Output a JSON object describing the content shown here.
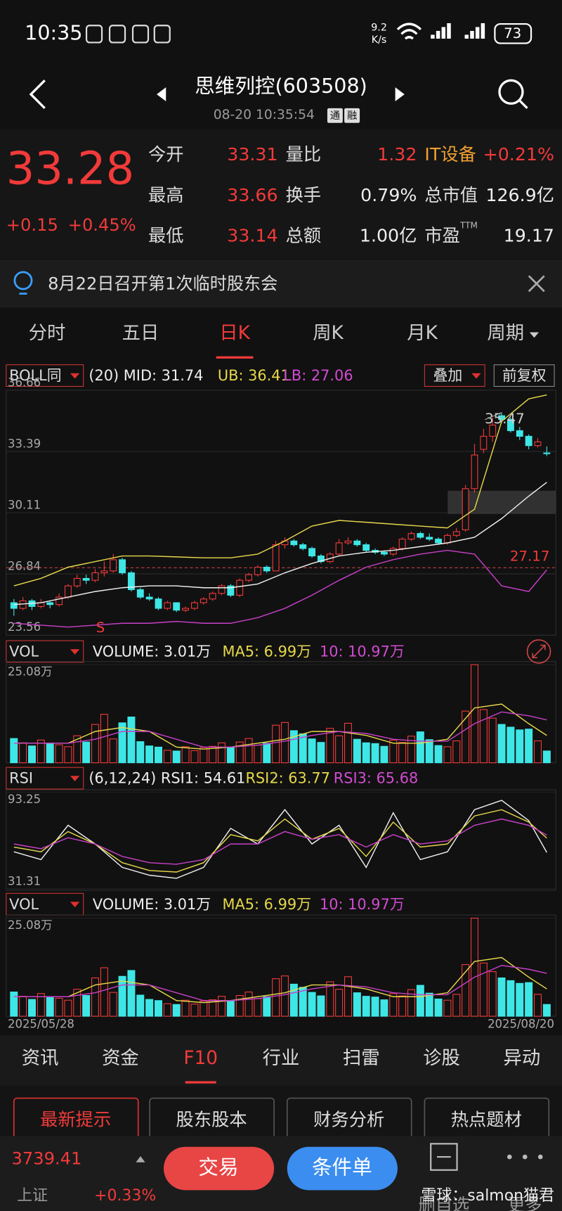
{
  "status_bar": {
    "time": "10:35",
    "speed": "9.2",
    "speed_unit": "K/s",
    "battery": "73"
  },
  "header": {
    "title": "思维列控(603508)",
    "timestamp": "08-20 10:35:54",
    "badges": [
      "通",
      "融"
    ]
  },
  "quote": {
    "price": "33.28",
    "change": "+0.15",
    "change_pct": "+0.45%",
    "items": [
      {
        "label": "今开",
        "value": "33.31",
        "color": "#f23a3a"
      },
      {
        "label": "量比",
        "value": "1.32",
        "color": "#f23a3a"
      },
      {
        "label": "IT设备",
        "value": "+0.21%",
        "color": "#f23a3a"
      },
      {
        "label": "最高",
        "value": "33.66",
        "color": "#f23a3a"
      },
      {
        "label": "换手",
        "value": "0.79%",
        "color": "#eeeeee"
      },
      {
        "label": "总市值",
        "value": "126.9亿",
        "color": "#eeeeee"
      },
      {
        "label": "最低",
        "value": "33.14",
        "color": "#f23a3a"
      },
      {
        "label": "总额",
        "value": "1.00亿",
        "color": "#eeeeee"
      },
      {
        "label": "市盈",
        "sup": "TTM",
        "value": "19.17",
        "color": "#eeeeee"
      }
    ]
  },
  "notice": "8月22日召开第1次临时股东会",
  "tabs": [
    "分时",
    "五日",
    "日K",
    "周K",
    "月K",
    "周期"
  ],
  "kline": {
    "indicator": {
      "name": "BOLL同",
      "items": [
        "(20) MID: 31.74",
        "UB: 36.41",
        "LB: 27.06"
      ]
    },
    "overlay": "叠加",
    "adjust": "前复权",
    "ylim": [
      23.56,
      36.66
    ],
    "yticks": [
      36.66,
      33.39,
      30.11,
      26.84,
      23.56
    ],
    "reference_line": 27.17,
    "signal": "S",
    "candles": [
      [
        25.3,
        25.5,
        24.6,
        25.0
      ],
      [
        25.0,
        25.6,
        24.9,
        25.4
      ],
      [
        25.4,
        25.5,
        24.9,
        25.1
      ],
      [
        25.1,
        25.5,
        25.0,
        25.3
      ],
      [
        25.3,
        25.4,
        25.0,
        25.2
      ],
      [
        25.2,
        25.8,
        25.1,
        25.6
      ],
      [
        25.6,
        26.3,
        25.5,
        26.2
      ],
      [
        26.2,
        26.8,
        26.1,
        26.6
      ],
      [
        26.6,
        26.8,
        26.3,
        26.5
      ],
      [
        26.5,
        27.1,
        26.4,
        26.9
      ],
      [
        26.9,
        27.5,
        26.7,
        27.0
      ],
      [
        27.0,
        27.9,
        26.9,
        27.6
      ],
      [
        27.6,
        27.7,
        26.8,
        26.9
      ],
      [
        26.9,
        27.0,
        25.9,
        26.0
      ],
      [
        26.0,
        26.1,
        25.5,
        25.6
      ],
      [
        25.6,
        25.8,
        25.4,
        25.5
      ],
      [
        25.5,
        25.6,
        24.9,
        25.0
      ],
      [
        25.0,
        25.4,
        24.9,
        25.3
      ],
      [
        25.3,
        25.3,
        24.8,
        24.9
      ],
      [
        24.9,
        25.1,
        24.8,
        25.0
      ],
      [
        25.0,
        25.4,
        24.9,
        25.3
      ],
      [
        25.3,
        25.6,
        25.2,
        25.5
      ],
      [
        25.5,
        25.9,
        25.4,
        25.8
      ],
      [
        25.8,
        26.3,
        25.7,
        26.2
      ],
      [
        26.2,
        26.3,
        25.6,
        25.7
      ],
      [
        25.7,
        26.6,
        25.6,
        26.5
      ],
      [
        26.5,
        26.9,
        26.4,
        26.8
      ],
      [
        26.8,
        27.3,
        26.7,
        27.2
      ],
      [
        27.2,
        27.3,
        26.9,
        27.0
      ],
      [
        27.0,
        28.6,
        27.0,
        28.4
      ],
      [
        28.4,
        28.8,
        28.2,
        28.6
      ],
      [
        28.6,
        28.7,
        28.3,
        28.4
      ],
      [
        28.4,
        28.5,
        28.1,
        28.2
      ],
      [
        28.2,
        28.3,
        27.7,
        27.8
      ],
      [
        27.8,
        27.9,
        27.4,
        27.5
      ],
      [
        27.5,
        28.0,
        27.4,
        27.9
      ],
      [
        27.9,
        28.7,
        27.8,
        28.5
      ],
      [
        28.5,
        28.8,
        28.4,
        28.6
      ],
      [
        28.6,
        28.7,
        28.3,
        28.4
      ],
      [
        28.4,
        28.5,
        28.0,
        28.1
      ],
      [
        28.1,
        28.2,
        27.9,
        28.0
      ],
      [
        28.0,
        28.1,
        27.8,
        27.9
      ],
      [
        27.9,
        28.3,
        27.8,
        28.2
      ],
      [
        28.2,
        28.8,
        28.1,
        28.7
      ],
      [
        28.7,
        29.1,
        28.6,
        29.0
      ],
      [
        29.0,
        29.1,
        28.7,
        28.8
      ],
      [
        28.8,
        29.0,
        28.6,
        28.7
      ],
      [
        28.7,
        28.8,
        28.4,
        28.5
      ],
      [
        28.5,
        29.0,
        28.4,
        28.9
      ],
      [
        28.9,
        29.3,
        28.8,
        29.1
      ],
      [
        29.2,
        31.6,
        29.1,
        31.4
      ],
      [
        31.4,
        33.8,
        31.2,
        33.2
      ],
      [
        33.5,
        34.6,
        33.3,
        34.2
      ],
      [
        34.2,
        35.2,
        33.9,
        34.8
      ],
      [
        35.3,
        35.47,
        34.9,
        35.1
      ],
      [
        35.1,
        35.2,
        34.4,
        34.5
      ],
      [
        34.5,
        34.7,
        34.0,
        34.2
      ],
      [
        34.2,
        34.3,
        33.5,
        33.7
      ],
      [
        33.7,
        34.1,
        33.6,
        33.9
      ],
      [
        33.31,
        33.66,
        33.14,
        33.28
      ]
    ],
    "sample_x": [
      0,
      3,
      6,
      9,
      12,
      15,
      18,
      21,
      24,
      27,
      30,
      33,
      36,
      39,
      42,
      45,
      48,
      51,
      54,
      57,
      59
    ],
    "boll": [
      {
        "name": "UB",
        "color": "#e6d84a",
        "values": [
          26.2,
          26.6,
          27.2,
          27.5,
          27.8,
          27.8,
          27.75,
          27.7,
          27.7,
          27.9,
          28.6,
          29.4,
          29.7,
          29.6,
          29.5,
          29.4,
          29.3,
          30.3,
          35.0,
          36.2,
          36.41
        ]
      },
      {
        "name": "MID",
        "color": "#f0f0f0",
        "values": [
          25.2,
          25.3,
          25.6,
          25.9,
          26.1,
          26.2,
          26.2,
          26.1,
          26.1,
          26.3,
          26.9,
          27.4,
          27.8,
          28.0,
          28.1,
          28.3,
          28.5,
          28.8,
          29.8,
          31.0,
          31.74
        ]
      },
      {
        "name": "LB",
        "color": "#c840c8",
        "values": [
          24.2,
          24.1,
          24.0,
          24.1,
          24.2,
          24.2,
          24.3,
          24.2,
          24.2,
          24.5,
          25.0,
          25.7,
          26.5,
          27.2,
          27.6,
          27.9,
          28.1,
          27.9,
          26.2,
          25.9,
          27.06
        ]
      }
    ]
  },
  "volume": {
    "indicator": {
      "name": "VOL",
      "items": [
        "VOLUME: 3.01万",
        "MA5: 6.99万",
        "10: 10.97万"
      ]
    },
    "ylim": [
      0,
      25.08
    ],
    "yticks": [
      {
        "value": 25.08,
        "label": "25.08万"
      }
    ],
    "values": [
      6.2,
      5.1,
      4.3,
      5.8,
      5.0,
      4.6,
      4.1,
      6.9,
      5.3,
      9.8,
      12.4,
      6.1,
      10.2,
      11.7,
      5.4,
      4.3,
      4.0,
      3.2,
      3.0,
      4.1,
      3.1,
      3.9,
      4.2,
      5.1,
      4.0,
      5.3,
      6.2,
      4.5,
      5.0,
      9.6,
      10.3,
      8.2,
      7.4,
      6.1,
      5.2,
      8.8,
      6.9,
      10.1,
      6.0,
      5.1,
      4.9,
      4.2,
      5.8,
      5.2,
      6.8,
      7.9,
      5.9,
      4.4,
      4.1,
      5.6,
      13.2,
      25.08,
      13.6,
      11.4,
      9.8,
      9.1,
      8.4,
      8.6,
      5.6,
      3.01
    ],
    "ma": [
      {
        "name": "MA5",
        "color": "#e6d84a",
        "values": [
          5,
          5,
          5,
          8,
          9,
          8,
          4,
          3.5,
          4,
          5,
          6,
          8,
          8,
          7,
          5,
          5,
          6,
          14,
          15,
          10,
          6.99
        ]
      },
      {
        "name": "10",
        "color": "#c840c8",
        "values": [
          5,
          5,
          5,
          6,
          8,
          8,
          6,
          4,
          4,
          4.5,
          5.5,
          7,
          8,
          7.5,
          6,
          5.5,
          5.5,
          10,
          13,
          12,
          10.97
        ]
      }
    ]
  },
  "rsi": {
    "indicator": {
      "name": "RSI",
      "items": [
        "(6,12,24) RSI1: 54.61",
        "RSI2: 63.77",
        "RSI3: 65.68"
      ]
    },
    "ylim": [
      31.31,
      93.25
    ],
    "yticks": [
      93.25,
      31.31
    ],
    "series": [
      {
        "name": "RSI1",
        "color": "#f0f0f0",
        "values": [
          55,
          50,
          72,
          60,
          45,
          40,
          38,
          45,
          70,
          60,
          82,
          60,
          72,
          45,
          80,
          50,
          55,
          82,
          88,
          75,
          54.61
        ]
      },
      {
        "name": "RSI2",
        "color": "#e6d84a",
        "values": [
          58,
          55,
          68,
          60,
          48,
          43,
          42,
          48,
          66,
          62,
          76,
          63,
          70,
          52,
          74,
          58,
          60,
          78,
          82,
          74,
          63.77
        ]
      },
      {
        "name": "RSI3",
        "color": "#c840c8",
        "values": [
          60,
          57,
          64,
          60,
          52,
          48,
          47,
          50,
          60,
          60,
          68,
          63,
          66,
          58,
          66,
          60,
          62,
          72,
          76,
          72,
          65.68
        ]
      }
    ]
  },
  "dates": [
    "2025/05/28",
    "2025/08/20"
  ],
  "bottom_tabs": [
    "资讯",
    "资金",
    "F10",
    "行业",
    "扫雷",
    "诊股",
    "异动"
  ],
  "buttons": [
    "最新提示",
    "股东股本",
    "财务分析",
    "热点题材"
  ],
  "footer": {
    "index_value": "3739.41",
    "index_name": "上证",
    "index_change": "+0.33%",
    "trade": "交易",
    "condition": "条件单",
    "remove": "删自选",
    "more": "更多",
    "watermark": "雪球：salmon猫君"
  }
}
